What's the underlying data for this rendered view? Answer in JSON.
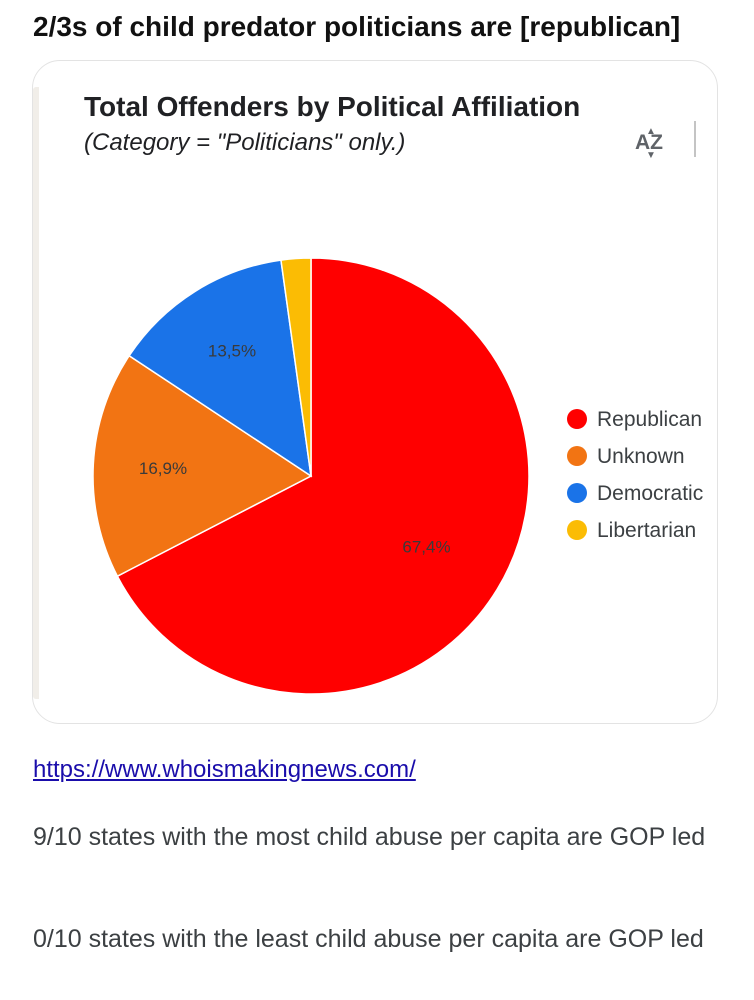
{
  "post": {
    "title": "2/3s of child predator politicians are [republican]",
    "link_text": "https://www.whoismakingnews.com/",
    "paragraph_1": "9/10 states with the most child abuse per capita are GOP led",
    "paragraph_2": "0/10 states with the least child abuse per capita are GOP led"
  },
  "chart_data": {
    "type": "pie",
    "title": "Total Offenders by Political Affiliation",
    "subtitle": "(Category = \"Politicians\" only.)",
    "sort_icon": "sort-az-icon",
    "legend_position": "right",
    "slices": [
      {
        "name": "Republican",
        "value": 67.4,
        "label": "67,4%",
        "color": "#ff0000"
      },
      {
        "name": "Unknown",
        "value": 16.9,
        "label": "16,9%",
        "color": "#f27413"
      },
      {
        "name": "Democratic",
        "value": 13.5,
        "label": "13,5%",
        "color": "#1a73e8"
      },
      {
        "name": "Libertarian",
        "value": 2.2,
        "label": "",
        "color": "#fbbc04"
      }
    ]
  }
}
